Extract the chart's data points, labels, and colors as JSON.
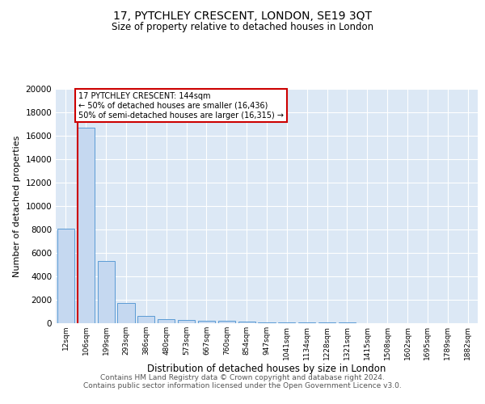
{
  "title": "17, PYTCHLEY CRESCENT, LONDON, SE19 3QT",
  "subtitle": "Size of property relative to detached houses in London",
  "xlabel": "Distribution of detached houses by size in London",
  "ylabel": "Number of detached properties",
  "categories": [
    "12sqm",
    "106sqm",
    "199sqm",
    "293sqm",
    "386sqm",
    "480sqm",
    "573sqm",
    "667sqm",
    "760sqm",
    "854sqm",
    "947sqm",
    "1041sqm",
    "1134sqm",
    "1228sqm",
    "1321sqm",
    "1415sqm",
    "1508sqm",
    "1602sqm",
    "1695sqm",
    "1789sqm",
    "1882sqm"
  ],
  "values": [
    8100,
    16700,
    5300,
    1750,
    650,
    350,
    270,
    220,
    180,
    150,
    100,
    80,
    60,
    50,
    40,
    30,
    25,
    20,
    15,
    12,
    10
  ],
  "bar_color": "#c5d8f0",
  "bar_edge_color": "#5b9bd5",
  "vline_color": "#cc0000",
  "vline_x_index": 1,
  "annotation_text": "17 PYTCHLEY CRESCENT: 144sqm\n← 50% of detached houses are smaller (16,436)\n50% of semi-detached houses are larger (16,315) →",
  "annotation_box_color": "#cc0000",
  "ylim": [
    0,
    20000
  ],
  "yticks": [
    0,
    2000,
    4000,
    6000,
    8000,
    10000,
    12000,
    14000,
    16000,
    18000,
    20000
  ],
  "background_color": "#dce8f5",
  "grid_color": "#ffffff",
  "footer_line1": "Contains HM Land Registry data © Crown copyright and database right 2024.",
  "footer_line2": "Contains public sector information licensed under the Open Government Licence v3.0.",
  "title_fontsize": 10,
  "subtitle_fontsize": 8.5,
  "xlabel_fontsize": 8.5,
  "ylabel_fontsize": 8,
  "annotation_fontsize": 7,
  "footer_fontsize": 6.5
}
